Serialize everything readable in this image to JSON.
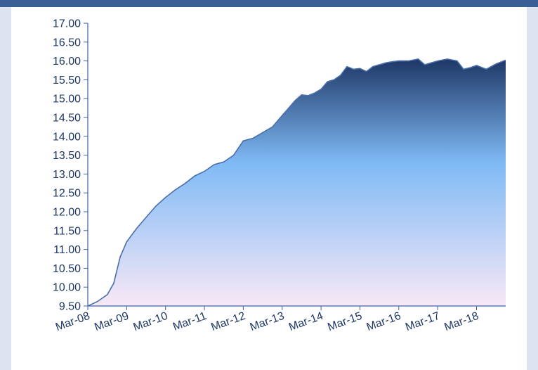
{
  "colors": {
    "background": "#dde4f0",
    "title_bar": "#3a5f96",
    "axis": "#3e64a6",
    "tick_text": "#1f3864",
    "fill_top": "#1e3766",
    "fill_mid": "#7fbaf5",
    "fill_bottom": "#f8e8f6",
    "line": "#4a6fab"
  },
  "chart_data": {
    "type": "area",
    "title": "",
    "xlabel": "",
    "ylabel": "",
    "ylim": [
      9.5,
      17.0
    ],
    "yticks": [
      "9.50",
      "10.00",
      "10.50",
      "11.00",
      "11.50",
      "12.00",
      "12.50",
      "13.00",
      "13.50",
      "14.00",
      "14.50",
      "15.00",
      "15.50",
      "16.00",
      "16.50",
      "17.00"
    ],
    "xticks": [
      "Mar-08",
      "Mar-09",
      "Mar-10",
      "Mar-11",
      "Mar-12",
      "Mar-13",
      "Mar-14",
      "Mar-15",
      "Mar-16",
      "Mar-17",
      "Mar-18"
    ],
    "xlim": [
      "2008-03",
      "2018-12"
    ],
    "grid": false,
    "legend": "none",
    "series": [
      {
        "x": [
          "2008-03",
          "2008-06",
          "2008-09",
          "2008-11",
          "2009-01",
          "2009-03",
          "2009-06",
          "2009-09",
          "2009-12",
          "2010-03",
          "2010-06",
          "2010-09",
          "2010-12",
          "2011-03",
          "2011-06",
          "2011-09",
          "2011-12",
          "2012-03",
          "2012-06",
          "2012-09",
          "2012-12",
          "2013-03",
          "2013-05",
          "2013-07",
          "2013-09",
          "2013-11",
          "2014-01",
          "2014-03",
          "2014-05",
          "2014-07",
          "2014-09",
          "2014-11",
          "2015-01",
          "2015-03",
          "2015-05",
          "2015-07",
          "2015-09",
          "2015-11",
          "2016-01",
          "2016-03",
          "2016-06",
          "2016-09",
          "2016-11",
          "2017-01",
          "2017-03",
          "2017-06",
          "2017-09",
          "2017-11",
          "2018-01",
          "2018-03",
          "2018-06",
          "2018-09",
          "2018-12"
        ],
        "values": [
          9.5,
          9.62,
          9.8,
          10.1,
          10.8,
          11.2,
          11.55,
          11.85,
          12.15,
          12.38,
          12.58,
          12.75,
          12.95,
          13.07,
          13.25,
          13.32,
          13.5,
          13.88,
          13.95,
          14.1,
          14.25,
          14.55,
          14.75,
          14.95,
          15.1,
          15.08,
          15.15,
          15.25,
          15.45,
          15.5,
          15.62,
          15.85,
          15.78,
          15.8,
          15.72,
          15.85,
          15.9,
          15.95,
          15.98,
          16.0,
          16.0,
          16.05,
          15.9,
          15.95,
          16.0,
          16.05,
          16.0,
          15.78,
          15.82,
          15.88,
          15.78,
          15.92,
          16.02
        ]
      }
    ]
  }
}
